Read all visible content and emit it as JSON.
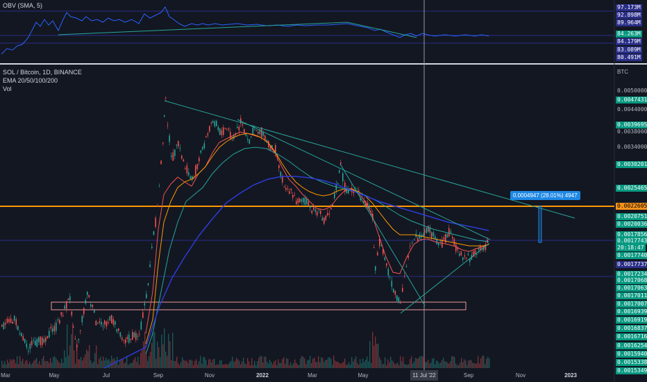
{
  "obv_pane": {
    "title": "OBV (SMA, 5)",
    "levels": [
      {
        "text": "97.173M",
        "style": "navy"
      },
      {
        "text": "92.898M",
        "style": "navy"
      },
      {
        "text": "89.964M",
        "style": "navy"
      },
      {
        "text": "84.263M",
        "style": "teal"
      },
      {
        "text": "84.179M",
        "style": "navy"
      },
      {
        "text": "83.089M",
        "style": "navy"
      },
      {
        "text": "80.491M",
        "style": "navy"
      }
    ]
  },
  "main_pane": {
    "symbol": "SOL / Bitcoin, 1D, BINANCE",
    "indicator_1": "EMA 20/50/100/200",
    "indicator_2": "Vol",
    "currency": "BTC",
    "price_labels": [
      {
        "text": "0.0050000",
        "style": "plain"
      },
      {
        "text": "0.0047431",
        "style": "teal"
      },
      {
        "text": "0.0044000",
        "style": "plain"
      },
      {
        "text": "0.0039695",
        "style": "teal"
      },
      {
        "text": "0.0038000",
        "style": "plain"
      },
      {
        "text": "0.0034000",
        "style": "plain"
      },
      {
        "text": "0.0030201",
        "style": "teal"
      },
      {
        "text": "0.0025465",
        "style": "teal"
      },
      {
        "text": "0.0022605",
        "style": "orange"
      },
      {
        "text": "0.0020751",
        "style": "teal"
      },
      {
        "text": "0.0020036",
        "style": "teal"
      },
      {
        "text": "0.0017856",
        "style": "teal"
      },
      {
        "text": "0.0017743",
        "style": "teal"
      },
      {
        "text": "20:18:47",
        "style": "teal"
      },
      {
        "text": "0.0017740",
        "style": "teal"
      },
      {
        "text": "0.0017737",
        "style": "navy"
      },
      {
        "text": "0.0017234",
        "style": "teal"
      },
      {
        "text": "0.0017068",
        "style": "teal"
      },
      {
        "text": "0.0017063",
        "style": "teal"
      },
      {
        "text": "0.0017011",
        "style": "teal"
      },
      {
        "text": "0.0017007",
        "style": "teal"
      },
      {
        "text": "0.0016939",
        "style": "teal"
      },
      {
        "text": "0.0016919",
        "style": "teal"
      },
      {
        "text": "0.0016837",
        "style": "teal"
      },
      {
        "text": "0.0016716",
        "style": "teal"
      },
      {
        "text": "0.0016254",
        "style": "teal"
      },
      {
        "text": "0.0015940",
        "style": "teal"
      },
      {
        "text": "0.0015338",
        "style": "teal"
      },
      {
        "text": "0.0015349",
        "style": "teal"
      }
    ],
    "measure_label": "0.0004947 (28.01%) 4947"
  },
  "time_axis": {
    "ticks": [
      {
        "text": "Mar",
        "bold": false
      },
      {
        "text": "May",
        "bold": false
      },
      {
        "text": "Jul",
        "bold": false
      },
      {
        "text": "Sep",
        "bold": false
      },
      {
        "text": "Nov",
        "bold": false
      },
      {
        "text": "2022",
        "bold": true
      },
      {
        "text": "Mar",
        "bold": false
      },
      {
        "text": "May",
        "bold": false
      },
      {
        "text": "Sep",
        "bold": false
      },
      {
        "text": "Nov",
        "bold": false
      },
      {
        "text": "2023",
        "bold": true
      }
    ],
    "crosshair_date": "11 Jul '22"
  },
  "colors": {
    "background": "#131722",
    "teal": "#26a69a",
    "red": "#ef5350",
    "orange": "#ff9800",
    "navy": "#2a2e88",
    "obv_line": "#2962ff"
  }
}
